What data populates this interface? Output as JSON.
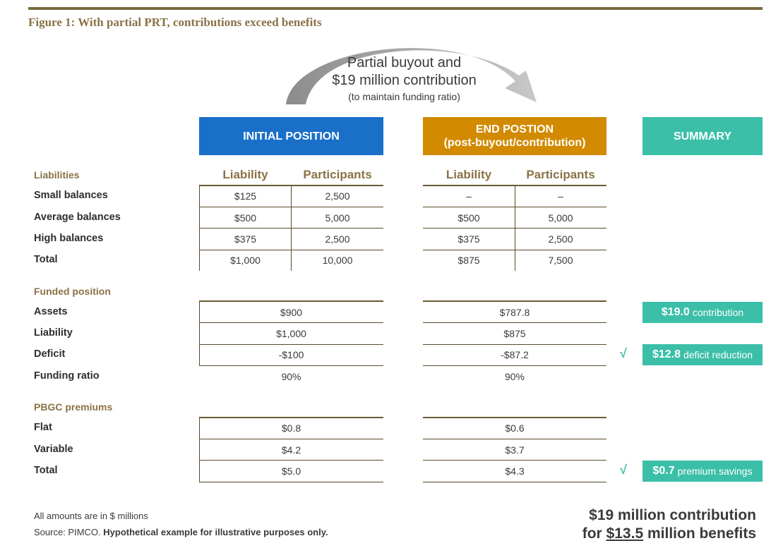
{
  "figure_title": "Figure 1: With partial PRT, contributions exceed benefits",
  "arrow": {
    "line1": "Partial buyout and",
    "line2": "$19 million contribution",
    "line3": "(to maintain funding ratio)"
  },
  "headers": {
    "initial": "INITIAL POSITION",
    "end_line1": "END POSTION",
    "end_line2": "(post-buyout/contribution)",
    "summary": "SUMMARY"
  },
  "liabilities": {
    "section": "Liabilities",
    "col_liability": "Liability",
    "col_participants": "Participants",
    "rows": [
      {
        "label": "Small balances",
        "init_liab": "$125",
        "init_part": "2,500",
        "end_liab": "–",
        "end_part": "–"
      },
      {
        "label": "Average balances",
        "init_liab": "$500",
        "init_part": "5,000",
        "end_liab": "$500",
        "end_part": "5,000"
      },
      {
        "label": "High balances",
        "init_liab": "$375",
        "init_part": "2,500",
        "end_liab": "$375",
        "end_part": "2,500"
      },
      {
        "label": "Total",
        "init_liab": "$1,000",
        "init_part": "10,000",
        "end_liab": "$875",
        "end_part": "7,500"
      }
    ]
  },
  "funded": {
    "section": "Funded position",
    "rows": [
      {
        "label": "Assets",
        "initial": "$900",
        "end": "$787.8"
      },
      {
        "label": "Liability",
        "initial": "$1,000",
        "end": "$875"
      },
      {
        "label": "Deficit",
        "initial": "-$100",
        "end": "-$87.2"
      },
      {
        "label": "Funding ratio",
        "initial": "90%",
        "end": "90%"
      }
    ]
  },
  "pbgc": {
    "section": "PBGC premiums",
    "rows": [
      {
        "label": "Flat",
        "initial": "$0.8",
        "end": "$0.6"
      },
      {
        "label": "Variable",
        "initial": "$4.2",
        "end": "$3.7"
      },
      {
        "label": "Total",
        "initial": "$5.0",
        "end": "$4.3"
      }
    ]
  },
  "summary": {
    "contribution": {
      "value": "$19.0",
      "text": "contribution"
    },
    "deficit": {
      "value": "$12.8",
      "text": "deficit reduction"
    },
    "premium": {
      "value": "$0.7",
      "text": "premium savings"
    },
    "check": "√"
  },
  "footnote": {
    "line1": "All amounts are in $ millions",
    "source_prefix": "Source: PIMCO.",
    "source_bold": "Hypothetical example for illustrative purposes only."
  },
  "conclusion": {
    "line1": "$19 million contribution",
    "line2_prefix": "for",
    "line2_amount": "$13.5",
    "line2_suffix": "million benefits"
  },
  "colors": {
    "initial_header": "#1a6fc9",
    "end_header": "#d28a00",
    "summary": "#3bbfa8",
    "title": "#8a7246"
  }
}
